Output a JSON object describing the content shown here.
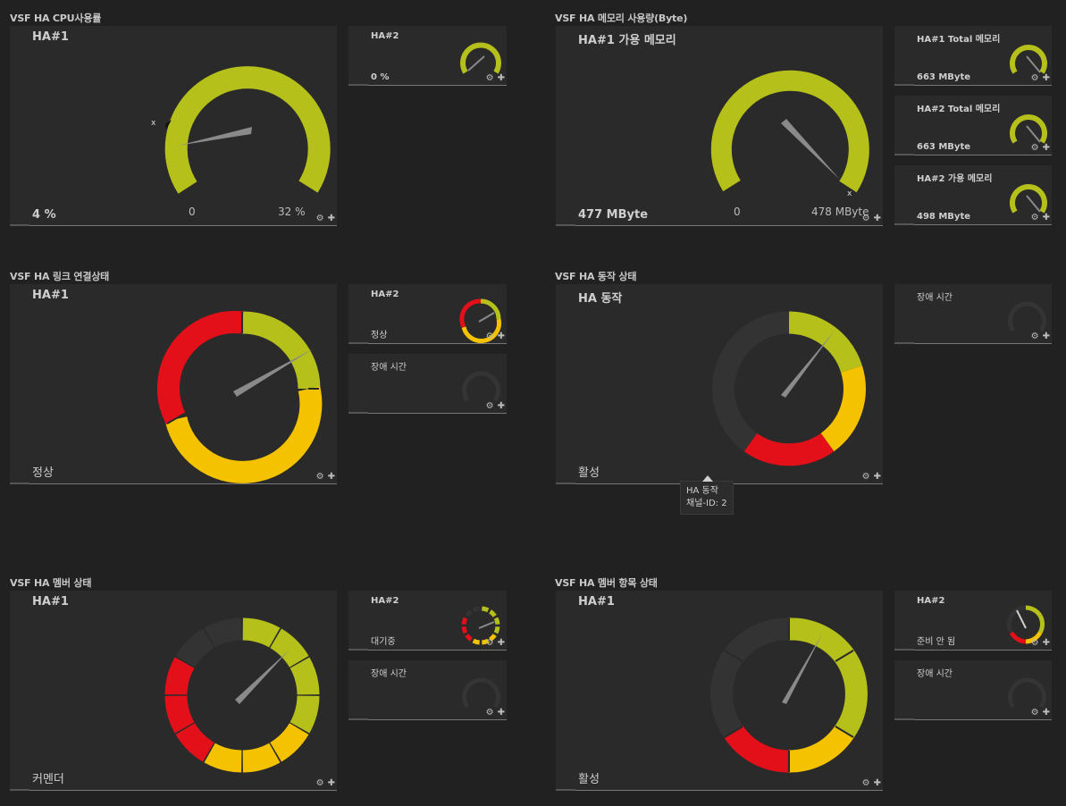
{
  "sections": {
    "cpu": "VSF HA CPU사용률",
    "mem": "VSF HA 메모리 사용량(Byte)",
    "link": "VSF HA 링크 연결상태",
    "op": "VSF HA 동작 상태",
    "member": "VSF HA 멤버 상태",
    "member_item": "VSF HA 멤버 항목 상태"
  },
  "cards": {
    "cpu1": {
      "name": "HA#1",
      "value": "4 %",
      "min": "0",
      "max": "32 %",
      "level": 0.125
    },
    "cpu2": {
      "name": "HA#2",
      "value": "0 %",
      "level": 0.0
    },
    "mem1": {
      "name": "HA#1 가용 메모리",
      "value": "477 MByte",
      "min": "0",
      "max": "478 MByte",
      "level": 0.998
    },
    "mem_t1": {
      "name": "HA#1 Total 메모리",
      "value": "663 MByte"
    },
    "mem_t2": {
      "name": "HA#2 Total 메모리",
      "value": "663 MByte"
    },
    "mem_a2": {
      "name": "HA#2 가용 메모리",
      "value": "498 MByte"
    },
    "link1": {
      "name": "HA#1",
      "value": "정상"
    },
    "link2": {
      "name": "HA#2",
      "value": "정상"
    },
    "link_fail": {
      "name": "장애 시간",
      "value": ""
    },
    "op1": {
      "name": "HA 동작",
      "value": "활성"
    },
    "op_fail": {
      "name": "장애 시간",
      "value": ""
    },
    "mem_st1": {
      "name": "HA#1",
      "value": "커멘더"
    },
    "mem_st2": {
      "name": "HA#2",
      "value": "대기중"
    },
    "mem_st_fail": {
      "name": "장애 시간",
      "value": ""
    },
    "item1": {
      "name": "HA#1",
      "value": "활성"
    },
    "item2": {
      "name": "HA#2",
      "value": "준비 안 됨"
    },
    "item_fail": {
      "name": "장애 시간",
      "value": ""
    }
  },
  "tooltip": {
    "line1": "HA 동작",
    "line2": "채널-ID: 2"
  },
  "colors": {
    "green": "#b5c11a",
    "yellow": "#f5c200",
    "red": "#e3101a",
    "dark": "#333333",
    "needle": "#8a8a8a"
  },
  "icons": {
    "settings": "gear-icon",
    "pin": "pin-icon"
  }
}
